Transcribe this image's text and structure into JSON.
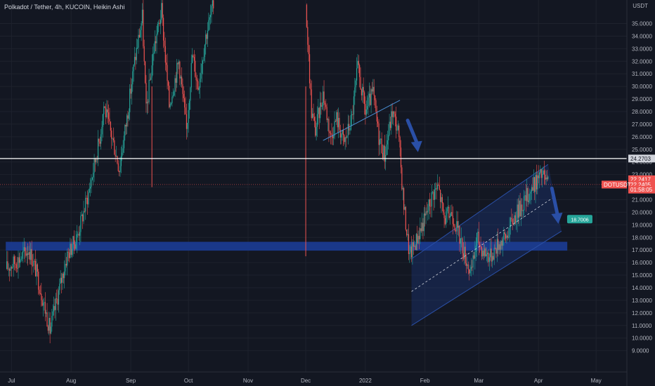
{
  "title": "Polkadot / Tether, 4h, KUCOIN, Heikin Ashi",
  "currency": "USDT",
  "colors": {
    "background": "#131722",
    "grid": "#1e222d",
    "up": "#26a69a",
    "down": "#ef5350",
    "support_zone": "#1a3a8f",
    "resistance_line": "#ffffff",
    "channel": "#1f3f8f",
    "arrow": "#2a4fa6",
    "target_label": "#26a69a"
  },
  "chart_data": {
    "type": "candlestick",
    "symbol": "DOTUSDT",
    "timeframe": "4h",
    "style": "Heikin Ashi",
    "x_ticks": [
      "Jul",
      "Aug",
      "Sep",
      "Oct",
      "Nov",
      "Dec",
      "2022",
      "Feb",
      "Mar",
      "Apr",
      "May"
    ],
    "y_ticks": [
      "9.0000",
      "10.0000",
      "11.0000",
      "12.0000",
      "13.0000",
      "14.0000",
      "15.0000",
      "16.0000",
      "17.0000",
      "18.0000",
      "19.0000",
      "20.0000",
      "21.0000",
      "22.0000",
      "23.0000",
      "24.0000",
      "25.0000",
      "26.0000",
      "27.0000",
      "28.0000",
      "29.0000",
      "30.0000",
      "31.0000",
      "32.0000",
      "33.0000",
      "34.0000",
      "35.0000"
    ],
    "ylim": [
      8.7,
      36.2
    ],
    "grid": true,
    "price_path": [
      {
        "date": "2021-06-28",
        "price": 15.5
      },
      {
        "date": "2021-07-05",
        "price": 16.3
      },
      {
        "date": "2021-07-10",
        "price": 17.1
      },
      {
        "date": "2021-07-14",
        "price": 15.2
      },
      {
        "date": "2021-07-21",
        "price": 10.6
      },
      {
        "date": "2021-07-26",
        "price": 14.0
      },
      {
        "date": "2021-07-30",
        "price": 16.6
      },
      {
        "date": "2021-08-04",
        "price": 18.0
      },
      {
        "date": "2021-08-10",
        "price": 21.5
      },
      {
        "date": "2021-08-16",
        "price": 26.0
      },
      {
        "date": "2021-08-18",
        "price": 28.5
      },
      {
        "date": "2021-08-23",
        "price": 25.5
      },
      {
        "date": "2021-08-26",
        "price": 23.5
      },
      {
        "date": "2021-08-30",
        "price": 27.5
      },
      {
        "date": "2021-09-03",
        "price": 32.0
      },
      {
        "date": "2021-09-07",
        "price": 35.5
      },
      {
        "date": "2021-09-09",
        "price": 28.0
      },
      {
        "date": "2021-09-13",
        "price": 33.0
      },
      {
        "date": "2021-09-17",
        "price": 36.0
      },
      {
        "date": "2021-09-21",
        "price": 28.5
      },
      {
        "date": "2021-09-26",
        "price": 32.0
      },
      {
        "date": "2021-09-30",
        "price": 26.5
      },
      {
        "date": "2021-10-03",
        "price": 32.5
      },
      {
        "date": "2021-10-06",
        "price": 30.0
      },
      {
        "date": "2021-10-10",
        "price": 34.0
      },
      {
        "date": "2021-10-14",
        "price": 36.5
      },
      {
        "date": "2021-12-01",
        "price": 36.5
      },
      {
        "date": "2021-12-04",
        "price": 28.0
      },
      {
        "date": "2021-12-06",
        "price": 26.5
      },
      {
        "date": "2021-12-10",
        "price": 29.5
      },
      {
        "date": "2021-12-14",
        "price": 26.0
      },
      {
        "date": "2021-12-17",
        "price": 27.5
      },
      {
        "date": "2021-12-21",
        "price": 25.5
      },
      {
        "date": "2021-12-25",
        "price": 27.5
      },
      {
        "date": "2021-12-28",
        "price": 31.5
      },
      {
        "date": "2022-01-01",
        "price": 28.0
      },
      {
        "date": "2022-01-05",
        "price": 29.5
      },
      {
        "date": "2022-01-08",
        "price": 26.0
      },
      {
        "date": "2022-01-11",
        "price": 24.5
      },
      {
        "date": "2022-01-15",
        "price": 28.0
      },
      {
        "date": "2022-01-18",
        "price": 26.5
      },
      {
        "date": "2022-01-21",
        "price": 20.5
      },
      {
        "date": "2022-01-24",
        "price": 16.5
      },
      {
        "date": "2022-01-28",
        "price": 18.0
      },
      {
        "date": "2022-02-01",
        "price": 19.5
      },
      {
        "date": "2022-02-05",
        "price": 21.5
      },
      {
        "date": "2022-02-08",
        "price": 22.0
      },
      {
        "date": "2022-02-11",
        "price": 19.5
      },
      {
        "date": "2022-02-15",
        "price": 20.0
      },
      {
        "date": "2022-02-19",
        "price": 18.0
      },
      {
        "date": "2022-02-22",
        "price": 16.5
      },
      {
        "date": "2022-02-25",
        "price": 15.0
      },
      {
        "date": "2022-02-28",
        "price": 18.0
      },
      {
        "date": "2022-03-03",
        "price": 17.0
      },
      {
        "date": "2022-03-07",
        "price": 16.5
      },
      {
        "date": "2022-03-11",
        "price": 17.5
      },
      {
        "date": "2022-03-15",
        "price": 18.0
      },
      {
        "date": "2022-03-19",
        "price": 19.5
      },
      {
        "date": "2022-03-23",
        "price": 20.5
      },
      {
        "date": "2022-03-27",
        "price": 21.5
      },
      {
        "date": "2022-03-31",
        "price": 22.5
      },
      {
        "date": "2022-04-03",
        "price": 23.0
      },
      {
        "date": "2022-04-06",
        "price": 22.2
      }
    ],
    "spikes": [
      {
        "date": "2021-09-12",
        "low": 22.0
      },
      {
        "date": "2021-12-01",
        "low": 16.5
      }
    ],
    "price_labels": [
      {
        "text": "24.2703",
        "price": 24.27
      },
      {
        "text": "22.2417",
        "price": 22.62
      },
      {
        "text": "22.2405",
        "price": 22.2
      },
      {
        "text": "DOTUSDT",
        "price": 22.2
      },
      {
        "text": "01:58:05",
        "price": 21.8
      }
    ],
    "horizontal_line": {
      "price": 24.27,
      "label": "24.2703"
    },
    "support_zone": {
      "price_top": 17.65,
      "price_bottom": 16.95,
      "date_start": "2021-06-28",
      "date_end": "2022-04-16"
    },
    "trend_line": {
      "start": {
        "date": "2021-12-10",
        "price": 25.7
      },
      "end": {
        "date": "2022-01-19",
        "price": 28.9
      }
    },
    "channel": {
      "upper_start": {
        "date": "2022-01-25",
        "price": 16.3
      },
      "upper_end": {
        "date": "2022-04-06",
        "price": 23.8
      },
      "lower_start": {
        "date": "2022-01-25",
        "price": 11.0
      },
      "lower_end": {
        "date": "2022-04-13",
        "price": 18.5
      },
      "midline_start": {
        "date": "2022-01-25",
        "price": 13.7
      },
      "midline_end": {
        "date": "2022-04-09",
        "price": 21.2
      }
    },
    "arrows": [
      {
        "from": {
          "date": "2022-01-23",
          "price": 27.3
        },
        "to": {
          "date": "2022-01-28",
          "price": 25.0
        }
      },
      {
        "from": {
          "date": "2022-04-08",
          "price": 21.9
        },
        "to": {
          "date": "2022-04-11",
          "price": 19.3
        }
      }
    ],
    "target_label": {
      "text": "18.7006",
      "price": 19.45,
      "date": "2022-04-13"
    }
  }
}
